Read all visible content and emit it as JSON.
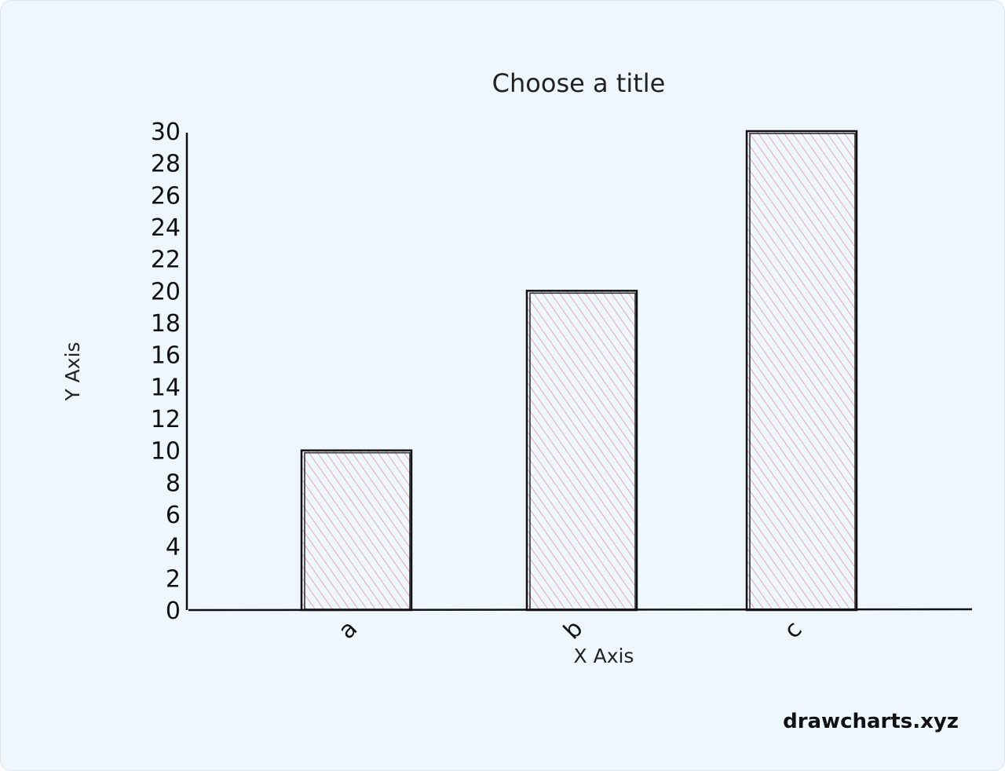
{
  "chart_data": {
    "type": "bar",
    "title": "Choose a title",
    "xlabel": "X Axis",
    "ylabel": "Y Axis",
    "categories": [
      "a",
      "b",
      "c"
    ],
    "values": [
      10,
      20,
      30
    ],
    "ylim": [
      0,
      30
    ],
    "yticks": [
      0,
      2,
      4,
      6,
      8,
      10,
      12,
      14,
      16,
      18,
      20,
      22,
      24,
      26,
      28,
      30
    ],
    "grid": false,
    "colors": {
      "bar_fill": "#e8868f",
      "outline": "#111111"
    }
  },
  "watermark": "drawcharts.xyz"
}
